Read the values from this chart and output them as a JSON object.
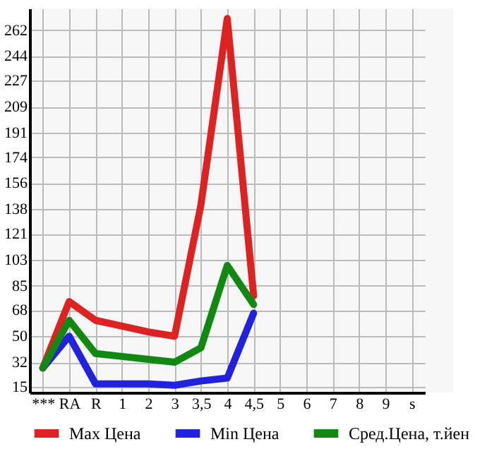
{
  "chart_data": {
    "type": "line",
    "categories": [
      "***",
      "RA",
      "R",
      "1",
      "2",
      "3",
      "3,5",
      "4",
      "4,5",
      "5",
      "6",
      "7",
      "8",
      "9",
      "s"
    ],
    "series": [
      {
        "name": "Max Цена",
        "color": "#dd2222",
        "values": [
          28,
          74,
          61,
          57,
          53,
          50,
          141,
          270,
          78,
          null,
          null,
          null,
          null,
          null,
          null
        ]
      },
      {
        "name": "Min Цена",
        "color": "#2222dd",
        "values": [
          28,
          50,
          17,
          17,
          17,
          16,
          19,
          21,
          66,
          null,
          null,
          null,
          null,
          null,
          null
        ]
      },
      {
        "name": "Сред.Цена, т.йен",
        "color": "#118811",
        "values": [
          28,
          61,
          38,
          36,
          34,
          32,
          42,
          99,
          72,
          null,
          null,
          null,
          null,
          null,
          null
        ]
      }
    ],
    "ylim": [
      11,
      277
    ],
    "yticks": [
      15,
      32,
      50,
      68,
      85,
      103,
      121,
      138,
      156,
      174,
      191,
      209,
      227,
      244,
      262
    ],
    "grid": true,
    "legend": "bottom",
    "marker": "none",
    "line_style": "solid"
  }
}
